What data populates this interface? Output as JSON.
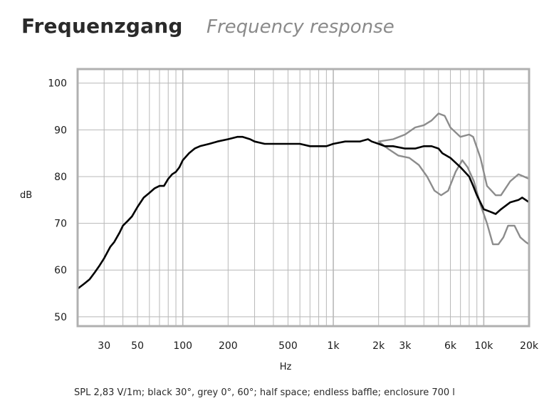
{
  "header": {
    "title": "Frequenzgang",
    "subtitle": "Frequency response"
  },
  "caption": "SPL 2,83 V/1m; black 30°, grey 0°, 60°; half space; endless baffle; enclosure 700 l",
  "chart_data": {
    "type": "line",
    "xscale": "log",
    "xlim": [
      20,
      20000
    ],
    "ylim": [
      48,
      103
    ],
    "xlabel": "Hz",
    "ylabel": "dB",
    "grid": true,
    "colors": {
      "black": "#000000",
      "grey": "#8c8c8c",
      "grid": "#b8b8b8",
      "frame": "#b0b0b0"
    },
    "x_ticks": [
      {
        "value": 30,
        "label": "30"
      },
      {
        "value": 50,
        "label": "50"
      },
      {
        "value": 100,
        "label": "100"
      },
      {
        "value": 200,
        "label": "200"
      },
      {
        "value": 500,
        "label": "500"
      },
      {
        "value": 1000,
        "label": "1k"
      },
      {
        "value": 2000,
        "label": "2k"
      },
      {
        "value": 3000,
        "label": "3k"
      },
      {
        "value": 6000,
        "label": "6k"
      },
      {
        "value": 10000,
        "label": "10k"
      },
      {
        "value": 20000,
        "label": "20k"
      }
    ],
    "y_ticks": [
      {
        "value": 50,
        "label": "50"
      },
      {
        "value": 60,
        "label": "60"
      },
      {
        "value": 70,
        "label": "70"
      },
      {
        "value": 80,
        "label": "80"
      },
      {
        "value": 90,
        "label": "90"
      },
      {
        "value": 100,
        "label": "100"
      }
    ],
    "series": [
      {
        "color": "grey",
        "x": [
          2000,
          2500,
          3000,
          3500,
          4000,
          4500,
          5000,
          5500,
          6000,
          7000,
          8000,
          8500,
          9500,
          10500,
          12000,
          13000,
          15000,
          17000,
          18500,
          20000
        ],
        "y": [
          87.5,
          88,
          89,
          90.5,
          91,
          92,
          93.5,
          93,
          90.5,
          88.5,
          89,
          88.5,
          84,
          78,
          76,
          76,
          79,
          80.5,
          80,
          79.5
        ]
      },
      {
        "color": "grey",
        "x": [
          2000,
          2300,
          2700,
          3200,
          3700,
          4200,
          4700,
          5200,
          5800,
          6500,
          7200,
          7800,
          8600,
          9500,
          10500,
          11500,
          12500,
          13500,
          14500,
          16000,
          17500,
          19000,
          20000
        ],
        "y": [
          87.5,
          86,
          84.5,
          84,
          82.5,
          80,
          77,
          76,
          77,
          81,
          83.5,
          82,
          79,
          74,
          70,
          65.5,
          65.5,
          67,
          69.5,
          69.5,
          67,
          66,
          65.5
        ]
      },
      {
        "color": "black",
        "x": [
          20,
          22,
          24,
          26,
          28,
          30,
          33,
          35,
          38,
          40,
          43,
          46,
          50,
          55,
          60,
          65,
          70,
          75,
          80,
          85,
          90,
          95,
          100,
          110,
          120,
          130,
          150,
          170,
          200,
          230,
          250,
          280,
          300,
          350,
          400,
          500,
          600,
          700,
          800,
          900,
          1000,
          1200,
          1400,
          1500,
          1700,
          1800,
          2000,
          2200,
          2500,
          3000,
          3500,
          4000,
          4500,
          5000,
          5300,
          6000,
          7000,
          8000,
          8500,
          9000,
          10000,
          11000,
          12000,
          13000,
          15000,
          17000,
          18000,
          19000,
          20000
        ],
        "y": [
          56,
          57,
          58,
          59.5,
          61,
          62.5,
          65,
          66,
          68,
          69.5,
          70.5,
          71.5,
          73.5,
          75.5,
          76.5,
          77.5,
          78,
          78,
          79.5,
          80.5,
          81,
          82,
          83.5,
          85,
          86,
          86.5,
          87,
          87.5,
          88,
          88.5,
          88.5,
          88,
          87.5,
          87,
          87,
          87,
          87,
          86.5,
          86.5,
          86.5,
          87,
          87.5,
          87.5,
          87.5,
          88,
          87.5,
          87,
          86.5,
          86.5,
          86,
          86,
          86.5,
          86.5,
          86,
          85,
          84,
          82,
          80,
          78,
          76,
          73,
          72.5,
          72,
          73,
          74.5,
          75,
          75.5,
          75,
          74.5
        ]
      }
    ]
  }
}
